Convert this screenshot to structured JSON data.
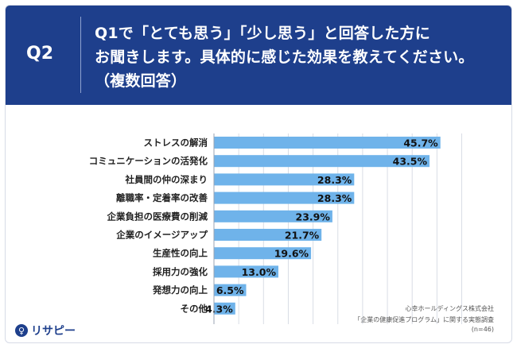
{
  "header": {
    "question_tag": "Q2",
    "question_lines": [
      "Q1で「とても思う」「少し思う」と回答した方に",
      "お聞きします。具体的に感じた効果を教えてください。",
      "（複数回答）"
    ]
  },
  "brand": {
    "logo_text": "リサピー",
    "logo_mark": "♀"
  },
  "source": {
    "company": "心幸ホールディングス株式会社",
    "survey": "「企業の健康促進プログラム」に関する実態調査",
    "n": "(n=46)"
  },
  "colors": {
    "header_bg": "#1e3f8c",
    "bar": "#6fb3ea",
    "grid": "#d9dde5"
  },
  "chart_data": {
    "type": "bar",
    "orientation": "horizontal",
    "categories": [
      "ストレスの解消",
      "コミュニケーションの活発化",
      "社員間の仲の深まり",
      "離職率・定着率の改善",
      "企業負担の医療費の削減",
      "企業のイメージアップ",
      "生産性の向上",
      "採用力の強化",
      "発想力の向上",
      "その他"
    ],
    "values": [
      45.7,
      43.5,
      28.3,
      28.3,
      23.9,
      21.7,
      19.6,
      13.0,
      6.5,
      4.3
    ],
    "value_labels": [
      "45.7%",
      "43.5%",
      "28.3%",
      "28.3%",
      "23.9%",
      "21.7%",
      "19.6%",
      "13.0%",
      "6.5%",
      "4.3%"
    ],
    "xlim": [
      0,
      50
    ],
    "grid": true
  }
}
